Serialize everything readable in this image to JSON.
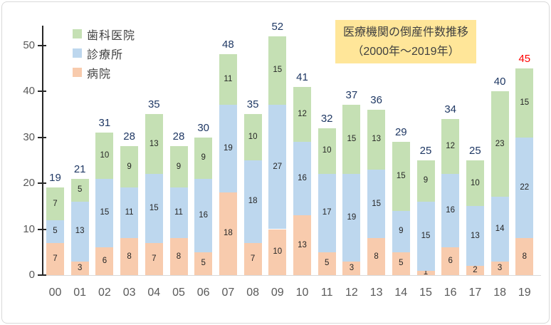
{
  "chart_data": {
    "type": "bar",
    "stacked": true,
    "grid": false,
    "title_box": {
      "title": "医療機関の倒産件数推移",
      "subtitle": "（2000年～2019年）",
      "bg_color": "#FFE699",
      "text_color": "#404040"
    },
    "categories": [
      "00",
      "01",
      "02",
      "03",
      "04",
      "05",
      "06",
      "07",
      "08",
      "09",
      "10",
      "11",
      "12",
      "13",
      "14",
      "15",
      "16",
      "17",
      "18",
      "19"
    ],
    "series": [
      {
        "name": "病院",
        "color": "#F8CBAD",
        "values": [
          7,
          3,
          6,
          8,
          7,
          8,
          5,
          18,
          7,
          10,
          13,
          5,
          3,
          8,
          5,
          1,
          6,
          2,
          3,
          8
        ]
      },
      {
        "name": "診療所",
        "color": "#BDD7EE",
        "values": [
          5,
          13,
          15,
          11,
          15,
          11,
          16,
          19,
          18,
          27,
          16,
          17,
          19,
          15,
          9,
          15,
          16,
          13,
          14,
          22
        ]
      },
      {
        "name": "歯科医院",
        "color": "#C5E0B4",
        "values": [
          7,
          5,
          10,
          9,
          13,
          9,
          9,
          11,
          10,
          15,
          12,
          10,
          15,
          13,
          15,
          9,
          12,
          10,
          23,
          15
        ]
      }
    ],
    "totals": [
      19,
      21,
      31,
      28,
      35,
      28,
      30,
      48,
      35,
      52,
      41,
      32,
      37,
      36,
      29,
      25,
      34,
      25,
      40,
      45
    ],
    "total_label_color": "#1F3864",
    "highlight_last_total_color": "#FF0000",
    "segment_label_color": "#262626",
    "axis": {
      "y_ticks": [
        "0",
        "10",
        "20",
        "30",
        "40",
        "50"
      ],
      "ylim": [
        0,
        55
      ],
      "tick_label_color": "#595959",
      "axis_color": "#262626"
    },
    "legend": {
      "position": "top-left",
      "items": [
        {
          "label": "歯科医院",
          "color": "#C5E0B4"
        },
        {
          "label": "診療所",
          "color": "#BDD7EE"
        },
        {
          "label": "病院",
          "color": "#F8CBAD"
        }
      ]
    }
  }
}
